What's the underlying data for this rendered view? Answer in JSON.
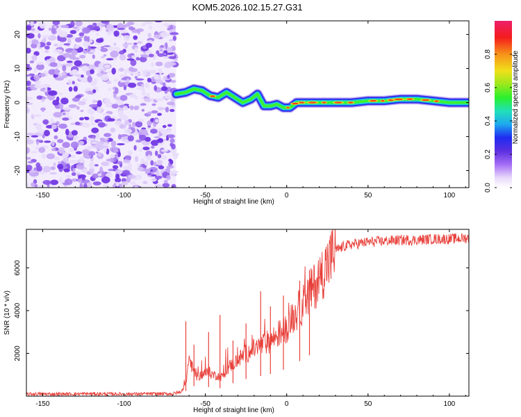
{
  "title": "KOM5.2026.102.15.27.G31",
  "chart_data": [
    {
      "type": "heatmap",
      "name": "spectrogram",
      "xlabel": "Height of straight line (km)",
      "ylabel": "Frequency (Hz)",
      "xlim": [
        -160,
        112
      ],
      "ylim": [
        -25,
        24
      ],
      "xticks": [
        -150,
        -100,
        -50,
        0,
        50,
        100
      ],
      "yticks": [
        -20,
        -10,
        0,
        10,
        20
      ],
      "noise_region_x": [
        -160,
        -68
      ],
      "ridge": {
        "x": [
          -68,
          -62,
          -57,
          -52,
          -47,
          -42,
          -37,
          -32,
          -27,
          -22,
          -18,
          -14,
          -10,
          -6,
          -2,
          2,
          6,
          10,
          20,
          30,
          40,
          50,
          60,
          70,
          80,
          90,
          100,
          112
        ],
        "y": [
          2.5,
          3,
          4,
          3.5,
          2,
          1.5,
          3,
          1.5,
          0,
          1,
          2.5,
          -1,
          -1,
          -0.5,
          -1.5,
          -1.5,
          0,
          0,
          0,
          0,
          0,
          0.5,
          0.5,
          1,
          1,
          0.5,
          0,
          0
        ]
      },
      "colorbar": {
        "label": "Normalized spectral amplitude",
        "ticks": [
          0.0,
          0.2,
          0.4,
          0.6,
          0.8
        ],
        "tick_labels": [
          "0.0",
          "0.2",
          "0.4",
          "0.6",
          "0.8"
        ]
      }
    },
    {
      "type": "line",
      "name": "snr",
      "xlabel": "Height of straight line (km)",
      "ylabel": "SNR (10 * v/v)",
      "xlim": [
        -160,
        112
      ],
      "ylim": [
        0,
        7800
      ],
      "xticks": [
        -150,
        -100,
        -50,
        0,
        50,
        100
      ],
      "yticks": [
        2000,
        4000,
        6000
      ],
      "color": "#e8403a",
      "series": {
        "x": [
          -160,
          -140,
          -120,
          -100,
          -80,
          -70,
          -65,
          -62,
          -60,
          -58,
          -55,
          -50,
          -45,
          -40,
          -35,
          -30,
          -25,
          -20,
          -15,
          -10,
          -5,
          0,
          5,
          10,
          15,
          20,
          25,
          30,
          35,
          40,
          50,
          60,
          70,
          80,
          90,
          100,
          112
        ],
        "values": [
          100,
          100,
          110,
          100,
          110,
          110,
          200,
          600,
          1800,
          1300,
          900,
          1100,
          1000,
          900,
          1400,
          1700,
          2000,
          2200,
          2400,
          2600,
          2900,
          3200,
          3800,
          4300,
          4900,
          5500,
          6200,
          6800,
          7000,
          7100,
          7200,
          7250,
          7300,
          7300,
          7350,
          7350,
          7400
        ],
        "spikes": [
          {
            "x": -62,
            "y": 3500
          },
          {
            "x": -57,
            "y": 2400
          },
          {
            "x": -48,
            "y": 3000
          },
          {
            "x": -41,
            "y": 3800
          },
          {
            "x": -33,
            "y": 2600
          },
          {
            "x": -25,
            "y": 3400
          },
          {
            "x": -16,
            "y": 4900
          },
          {
            "x": -10,
            "y": 4200
          },
          {
            "x": -2,
            "y": 4700
          },
          {
            "x": 8,
            "y": 5400
          },
          {
            "x": 14,
            "y": 5900
          }
        ]
      }
    }
  ]
}
